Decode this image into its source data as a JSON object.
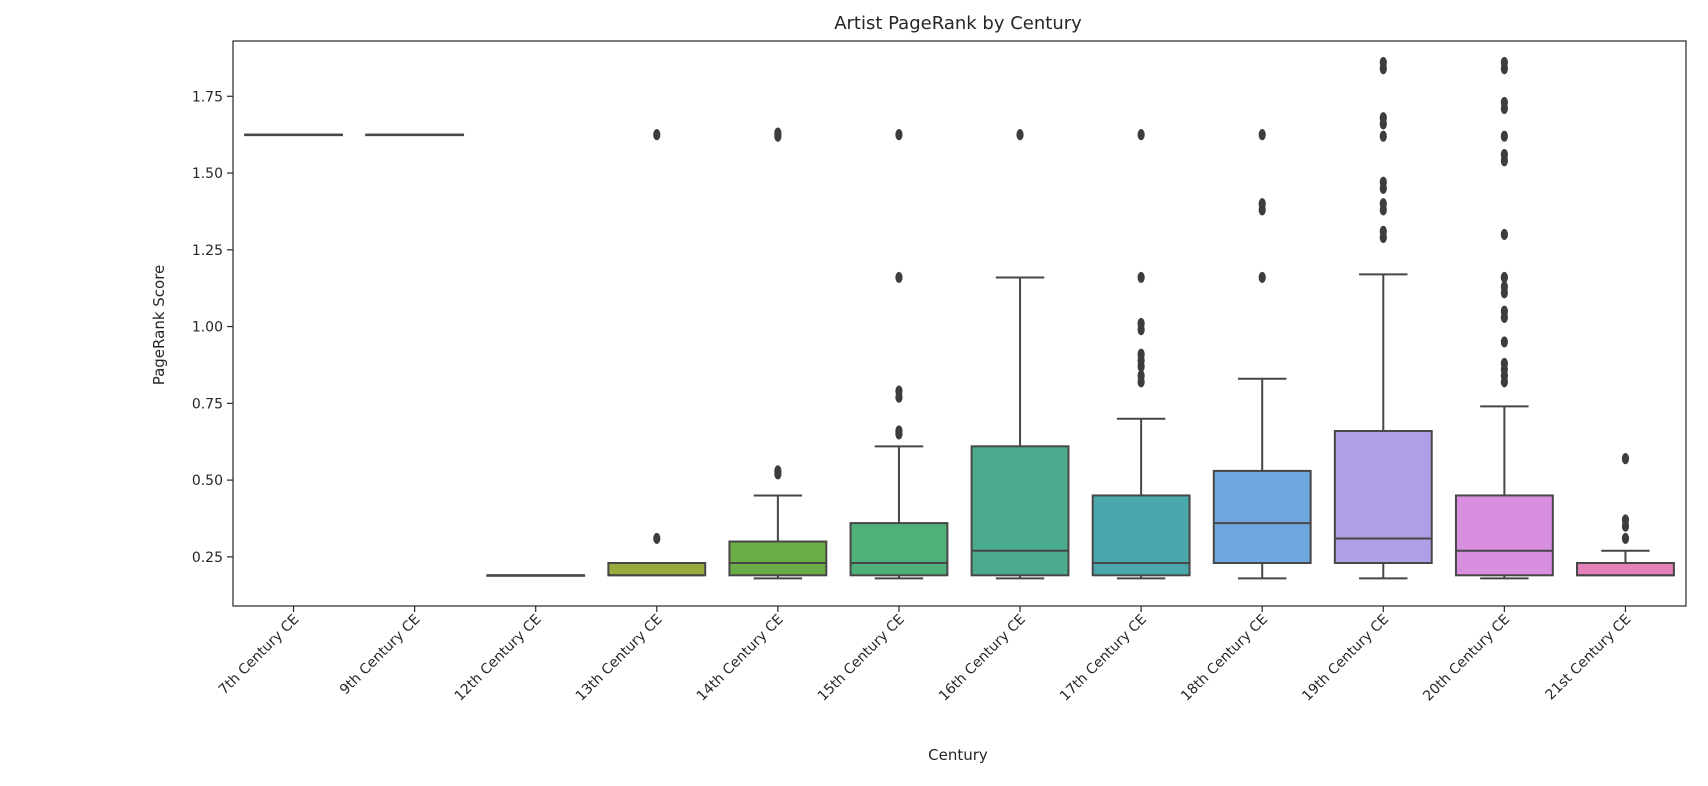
{
  "chart_data": {
    "type": "box",
    "title": "Artist PageRank by Century",
    "xlabel": "Century",
    "ylabel": "PageRank Score",
    "ylim": [
      0.09,
      1.93
    ],
    "yticks": [
      "0.25",
      "0.50",
      "0.75",
      "1.00",
      "1.25",
      "1.50",
      "1.75"
    ],
    "grid": false,
    "categories": [
      "7th Century CE",
      "9th Century CE",
      "12th Century CE",
      "13th Century CE",
      "14th Century CE",
      "15th Century CE",
      "16th Century CE",
      "17th Century CE",
      "18th Century CE",
      "19th Century CE",
      "20th Century CE",
      "21st Century CE"
    ],
    "boxes": [
      {
        "category": "7th Century CE",
        "color": "#e1736a",
        "q1": 1.625,
        "median": 1.625,
        "q3": 1.625,
        "whisker_low": 1.625,
        "whisker_high": 1.625,
        "outliers": []
      },
      {
        "category": "9th Century CE",
        "color": "#d99a4e",
        "q1": 1.625,
        "median": 1.625,
        "q3": 1.625,
        "whisker_low": 1.625,
        "whisker_high": 1.625,
        "outliers": []
      },
      {
        "category": "12th Century CE",
        "color": "#b3a93f",
        "q1": 0.19,
        "median": 0.19,
        "q3": 0.19,
        "whisker_low": 0.19,
        "whisker_high": 0.19,
        "outliers": []
      },
      {
        "category": "13th Century CE",
        "color": "#9aaa3c",
        "q1": 0.19,
        "median": 0.19,
        "q3": 0.23,
        "whisker_low": 0.19,
        "whisker_high": 0.23,
        "outliers": [
          0.31,
          1.625
        ]
      },
      {
        "category": "14th Century CE",
        "color": "#6bae47",
        "q1": 0.19,
        "median": 0.23,
        "q3": 0.3,
        "whisker_low": 0.18,
        "whisker_high": 0.45,
        "outliers": [
          0.52,
          0.53,
          1.62,
          1.63
        ]
      },
      {
        "category": "15th Century CE",
        "color": "#4fb07a",
        "q1": 0.19,
        "median": 0.23,
        "q3": 0.36,
        "whisker_low": 0.18,
        "whisker_high": 0.61,
        "outliers": [
          0.65,
          0.66,
          0.77,
          0.79,
          1.16,
          1.625
        ]
      },
      {
        "category": "16th Century CE",
        "color": "#4aab8f",
        "q1": 0.19,
        "median": 0.27,
        "q3": 0.61,
        "whisker_low": 0.18,
        "whisker_high": 1.16,
        "outliers": [
          1.625
        ]
      },
      {
        "category": "17th Century CE",
        "color": "#4aa8ac",
        "q1": 0.19,
        "median": 0.23,
        "q3": 0.45,
        "whisker_low": 0.18,
        "whisker_high": 0.7,
        "outliers": [
          0.82,
          0.84,
          0.87,
          0.89,
          0.91,
          0.99,
          1.01,
          1.16,
          1.625
        ]
      },
      {
        "category": "18th Century CE",
        "color": "#6fa7df",
        "q1": 0.23,
        "median": 0.36,
        "q3": 0.53,
        "whisker_low": 0.18,
        "whisker_high": 0.83,
        "outliers": [
          1.16,
          1.38,
          1.4,
          1.625
        ]
      },
      {
        "category": "19th Century CE",
        "color": "#b09fe6",
        "q1": 0.23,
        "median": 0.31,
        "q3": 0.66,
        "whisker_low": 0.18,
        "whisker_high": 1.17,
        "outliers": [
          1.29,
          1.31,
          1.38,
          1.4,
          1.45,
          1.47,
          1.62,
          1.66,
          1.68,
          1.84,
          1.86
        ]
      },
      {
        "category": "20th Century CE",
        "color": "#d98fe0",
        "q1": 0.19,
        "median": 0.27,
        "q3": 0.45,
        "whisker_low": 0.18,
        "whisker_high": 0.74,
        "outliers": [
          0.82,
          0.84,
          0.86,
          0.88,
          0.95,
          1.03,
          1.05,
          1.11,
          1.13,
          1.16,
          1.3,
          1.54,
          1.56,
          1.62,
          1.71,
          1.73,
          1.84,
          1.86
        ]
      },
      {
        "category": "21st Century CE",
        "color": "#e580b9",
        "q1": 0.19,
        "median": 0.19,
        "q3": 0.23,
        "whisker_low": 0.19,
        "whisker_high": 0.27,
        "outliers": [
          0.31,
          0.35,
          0.37,
          0.57
        ]
      }
    ]
  }
}
